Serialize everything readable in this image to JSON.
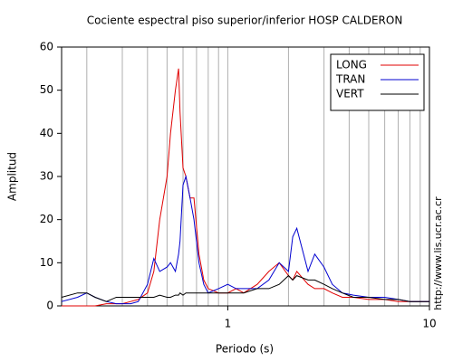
{
  "chart_data": {
    "type": "line",
    "title": "Cociente espectral piso superior/inferior  HOSP CALDERON",
    "x_label": "Periodo (s)",
    "y_label": "Amplitud",
    "side_note": "http://www.lis.ucr.ac.cr",
    "xlog": true,
    "grid": true,
    "legend": "upper right",
    "xlim": [
      0.15,
      10
    ],
    "xticks": [
      1,
      10
    ],
    "x_minor_ticks": [
      0.2,
      0.3,
      0.4,
      0.5,
      0.6,
      0.7,
      0.8,
      0.9,
      2,
      3,
      4,
      5,
      6,
      7,
      8,
      9
    ],
    "ylim": [
      0,
      60
    ],
    "yticks": [
      0,
      10,
      20,
      30,
      40,
      50,
      60
    ],
    "x": [
      0.15,
      0.18,
      0.2,
      0.22,
      0.25,
      0.28,
      0.3,
      0.33,
      0.36,
      0.4,
      0.43,
      0.46,
      0.5,
      0.52,
      0.55,
      0.57,
      0.58,
      0.6,
      0.62,
      0.65,
      0.68,
      0.72,
      0.76,
      0.8,
      0.9,
      1.0,
      1.1,
      1.2,
      1.4,
      1.6,
      1.8,
      2.0,
      2.1,
      2.2,
      2.5,
      2.7,
      3.0,
      3.3,
      3.7,
      4.2,
      5,
      6,
      7,
      8,
      9,
      10
    ],
    "series": [
      {
        "name": "LONG",
        "color": "#e00000",
        "values": [
          0,
          0,
          0,
          0,
          0.5,
          0.5,
          0.5,
          1,
          1.5,
          3,
          8,
          20,
          30,
          40,
          50,
          55,
          45,
          32,
          30,
          25,
          25,
          12,
          6,
          4,
          3,
          3,
          4,
          3,
          5,
          8,
          10,
          7,
          6,
          8,
          5,
          4,
          4,
          3,
          2,
          2,
          1.5,
          1.5,
          1,
          1,
          1,
          1
        ]
      },
      {
        "name": "TRAN",
        "color": "#0000d0",
        "values": [
          1,
          2,
          3,
          2,
          1,
          0.5,
          0.5,
          0.5,
          1,
          5,
          11,
          8,
          9,
          10,
          8,
          12,
          15,
          28,
          30,
          25,
          20,
          10,
          5,
          3,
          4,
          5,
          4,
          4,
          4,
          6,
          10,
          8,
          16,
          18,
          8,
          12,
          9,
          5,
          3,
          2.5,
          2,
          2,
          1.5,
          1,
          1,
          1
        ]
      },
      {
        "name": "VERT",
        "color": "#000000",
        "values": [
          2,
          3,
          3,
          2,
          1,
          2,
          2,
          2,
          2,
          2,
          2,
          2.5,
          2,
          2,
          2.5,
          2.5,
          3,
          2.5,
          3,
          3,
          3,
          3,
          3,
          3,
          3,
          3,
          3,
          3,
          4,
          4,
          5,
          7,
          6,
          7,
          6,
          6,
          5,
          4,
          3,
          2,
          2,
          1.5,
          1.5,
          1,
          1,
          1
        ]
      }
    ]
  }
}
